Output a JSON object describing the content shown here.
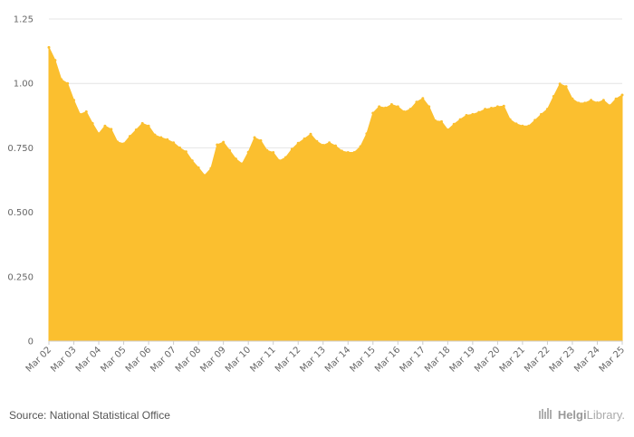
{
  "source_text": "Source: National Statistical Office",
  "logo": {
    "brand": "Helgi",
    "suffix": "Library."
  },
  "colors": {
    "area": "#fbbf2f",
    "grid": "#e4e4e4",
    "axis": "#666666"
  },
  "chart_data": {
    "type": "area",
    "title": "",
    "xlabel": "",
    "ylabel": "",
    "ylim": [
      0,
      1.25
    ],
    "grid": true,
    "y_ticks": [
      "0",
      "0.250",
      "0.500",
      "0.750",
      "1.00",
      "1.25"
    ],
    "y_tick_values": [
      0,
      0.25,
      0.5,
      0.75,
      1.0,
      1.25
    ],
    "x_tick_labels": [
      "Mar 02",
      "Mar 03",
      "Mar 04",
      "Mar 05",
      "Mar 06",
      "Mar 07",
      "Mar 08",
      "Mar 09",
      "Mar 10",
      "Mar 11",
      "Mar 12",
      "Mar 13",
      "Mar 14",
      "Mar 15",
      "Mar 16",
      "Mar 17",
      "Mar 18",
      "Mar 19",
      "Mar 20",
      "Mar 21",
      "Mar 22",
      "Mar 23",
      "Mar 24",
      "Mar 25"
    ],
    "x": [
      "Mar 02",
      "Jun 02",
      "Sep 02",
      "Dec 02",
      "Mar 03",
      "Jun 03",
      "Sep 03",
      "Dec 03",
      "Mar 04",
      "Jun 04",
      "Sep 04",
      "Dec 04",
      "Mar 05",
      "Jun 05",
      "Sep 05",
      "Dec 05",
      "Mar 06",
      "Jun 06",
      "Sep 06",
      "Dec 06",
      "Mar 07",
      "Jun 07",
      "Sep 07",
      "Dec 07",
      "Mar 08",
      "Jun 08",
      "Sep 08",
      "Dec 08",
      "Mar 09",
      "Jun 09",
      "Sep 09",
      "Dec 09",
      "Mar 10",
      "Jun 10",
      "Sep 10",
      "Dec 10",
      "Mar 11",
      "Jun 11",
      "Sep 11",
      "Dec 11",
      "Mar 12",
      "Jun 12",
      "Sep 12",
      "Dec 12",
      "Mar 13",
      "Jun 13",
      "Sep 13",
      "Dec 13",
      "Mar 14",
      "Jun 14",
      "Sep 14",
      "Dec 14",
      "Mar 15",
      "Jun 15",
      "Sep 15",
      "Dec 15",
      "Mar 16",
      "Jun 16",
      "Sep 16",
      "Dec 16",
      "Mar 17",
      "Jun 17",
      "Sep 17",
      "Dec 17",
      "Mar 18",
      "Jun 18",
      "Sep 18",
      "Dec 18",
      "Mar 19",
      "Jun 19",
      "Sep 19",
      "Dec 19",
      "Mar 20",
      "Jun 20",
      "Sep 20",
      "Dec 20",
      "Mar 21",
      "Jun 21",
      "Sep 21",
      "Dec 21",
      "Mar 22",
      "Jun 22",
      "Sep 22",
      "Dec 22",
      "Mar 23",
      "Jun 23",
      "Sep 23",
      "Dec 23",
      "Mar 24",
      "Jun 24",
      "Sep 24",
      "Dec 24",
      "Mar 25"
    ],
    "values": [
      1.14,
      1.09,
      1.015,
      1.0,
      0.935,
      0.88,
      0.89,
      0.845,
      0.805,
      0.835,
      0.822,
      0.773,
      0.766,
      0.795,
      0.82,
      0.845,
      0.835,
      0.8,
      0.79,
      0.782,
      0.77,
      0.75,
      0.735,
      0.7,
      0.673,
      0.643,
      0.67,
      0.762,
      0.772,
      0.74,
      0.707,
      0.688,
      0.733,
      0.79,
      0.778,
      0.74,
      0.732,
      0.7,
      0.713,
      0.745,
      0.768,
      0.785,
      0.803,
      0.775,
      0.76,
      0.77,
      0.758,
      0.738,
      0.732,
      0.732,
      0.755,
      0.805,
      0.885,
      0.91,
      0.905,
      0.918,
      0.91,
      0.89,
      0.9,
      0.928,
      0.942,
      0.91,
      0.855,
      0.852,
      0.82,
      0.842,
      0.86,
      0.876,
      0.88,
      0.888,
      0.9,
      0.904,
      0.91,
      0.912,
      0.86,
      0.843,
      0.835,
      0.835,
      0.857,
      0.88,
      0.9,
      0.95,
      0.998,
      0.988,
      0.94,
      0.924,
      0.924,
      0.935,
      0.925,
      0.935,
      0.914,
      0.94,
      0.955
    ]
  }
}
